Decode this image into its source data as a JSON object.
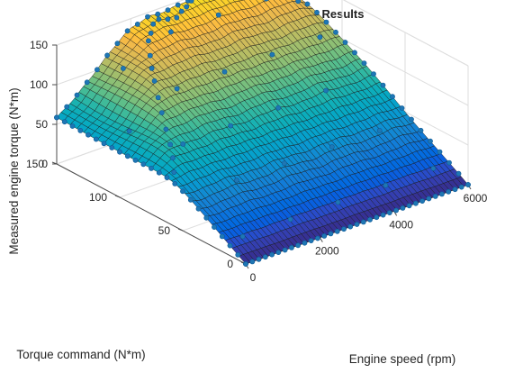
{
  "chart_data": {
    "type": "surface",
    "title": "Dynamometer Steady State Results",
    "xlabel": "Engine speed (rpm)",
    "ylabel": "Torque command (N*m)",
    "zlabel": "Measured engine torque (N*m)",
    "xlim": [
      0,
      6000
    ],
    "ylim": [
      0,
      150
    ],
    "zlim": [
      0,
      150
    ],
    "xticks": [
      "0",
      "2000",
      "4000",
      "6000"
    ],
    "yticks": [
      "0",
      "50",
      "100",
      "150"
    ],
    "zticks": [
      "0",
      "50",
      "100",
      "150"
    ],
    "colormap": "parula",
    "marker_color": "#1f77b4",
    "grid": true,
    "surface_model": {
      "description_of_shape": "measured torque equals torque command up to a speed-dependent maximum (peak ~155 N*m near 4000-5000 rpm, ~60 N*m at 0 rpm, ~125 N*m at 6000 rpm)",
      "max_torque_curve": {
        "speed_rpm": [
          0,
          500,
          1000,
          1500,
          2000,
          2500,
          3000,
          3500,
          4000,
          4500,
          5000,
          5500,
          6000
        ],
        "torque_nm": [
          58,
          75,
          98,
          120,
          138,
          148,
          145,
          150,
          155,
          155,
          153,
          140,
          125
        ]
      },
      "grid_speed_rpm": [
        0,
        6000
      ],
      "grid_command_nm": [
        0,
        150
      ]
    }
  }
}
